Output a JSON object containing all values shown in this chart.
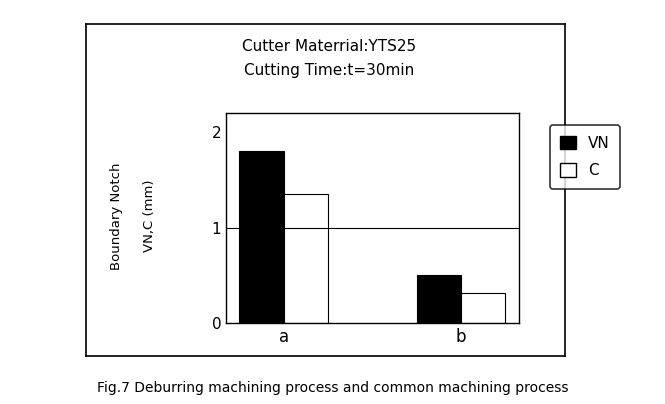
{
  "title_line1": "Cutter Materrial:YTS25",
  "title_line2": "Cutting Time:t=30min",
  "categories": [
    "a",
    "b"
  ],
  "vn_values": [
    1.8,
    0.5
  ],
  "c_values": [
    1.35,
    0.32
  ],
  "ylabel_line1": "Boundary Notch",
  "ylabel_line2": "VN,C (mm)",
  "ylim": [
    0,
    2.2
  ],
  "yticks": [
    0,
    1,
    2
  ],
  "bar_width": 0.25,
  "vn_color": "#000000",
  "c_color": "#ffffff",
  "legend_labels": [
    "VN",
    "C"
  ],
  "caption": "Fig.7 Deburring machining process and common machining process",
  "background_color": "#ffffff"
}
